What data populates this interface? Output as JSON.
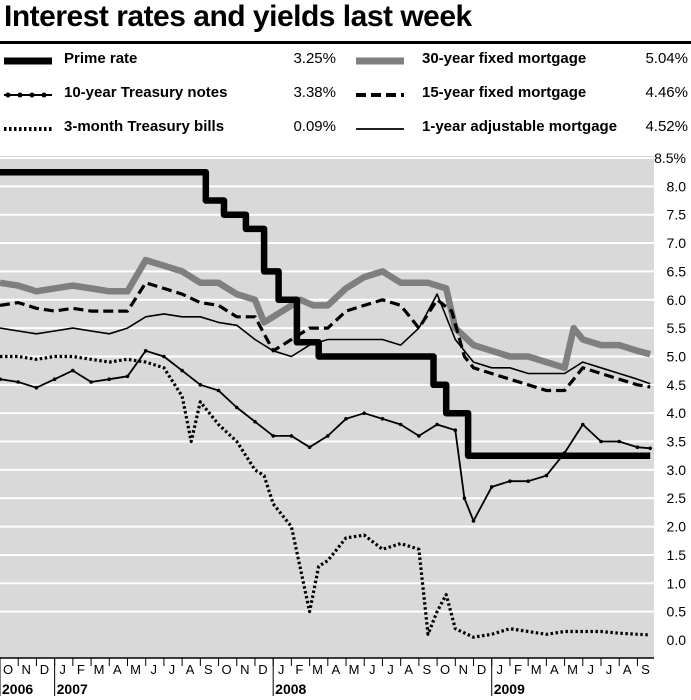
{
  "title": "Interest rates and yields last week",
  "legend": [
    {
      "key": "prime",
      "label": "Prime rate",
      "value": "3.25%"
    },
    {
      "key": "t10",
      "label": "10-year Treasury notes",
      "value": "3.38%"
    },
    {
      "key": "t3m",
      "label": "3-month Treasury bills",
      "value": "0.09%"
    },
    {
      "key": "m30",
      "label": "30-year fixed mortgage",
      "value": "5.04%"
    },
    {
      "key": "m15",
      "label": "15-year fixed mortgage",
      "value": "4.46%"
    },
    {
      "key": "arm1",
      "label": "1-year adjustable mortgage",
      "value": "4.52%"
    }
  ],
  "chart_data": {
    "type": "line",
    "title": "Interest rates and yields last week",
    "xlabel": "",
    "ylabel": "",
    "ylim": [
      0,
      8.5
    ],
    "yticks": [
      {
        "v": 8.5,
        "label": "8.5%"
      },
      {
        "v": 8.0,
        "label": "8.0"
      },
      {
        "v": 7.5,
        "label": "7.5"
      },
      {
        "v": 7.0,
        "label": "7.0"
      },
      {
        "v": 6.5,
        "label": "6.5"
      },
      {
        "v": 6.0,
        "label": "6.0"
      },
      {
        "v": 5.5,
        "label": "5.5"
      },
      {
        "v": 5.0,
        "label": "5.0"
      },
      {
        "v": 4.5,
        "label": "4.5"
      },
      {
        "v": 4.0,
        "label": "4.0"
      },
      {
        "v": 3.5,
        "label": "3.5"
      },
      {
        "v": 3.0,
        "label": "3.0"
      },
      {
        "v": 2.5,
        "label": "2.5"
      },
      {
        "v": 2.0,
        "label": "2.0"
      },
      {
        "v": 1.5,
        "label": "1.5"
      },
      {
        "v": 1.0,
        "label": "1.0"
      },
      {
        "v": 0.5,
        "label": "0.5"
      },
      {
        "v": 0.0,
        "label": "0.0"
      }
    ],
    "months": [
      "O",
      "N",
      "D",
      "J",
      "F",
      "M",
      "A",
      "M",
      "J",
      "J",
      "A",
      "S",
      "O",
      "N",
      "D",
      "J",
      "F",
      "M",
      "A",
      "M",
      "J",
      "J",
      "A",
      "S",
      "O",
      "N",
      "D",
      "J",
      "F",
      "M",
      "A",
      "M",
      "J",
      "J",
      "A",
      "S"
    ],
    "years": [
      {
        "label": "2006",
        "month_index": 0
      },
      {
        "label": "2007",
        "month_index": 3
      },
      {
        "label": "2008",
        "month_index": 15
      },
      {
        "label": "2009",
        "month_index": 27
      }
    ],
    "x_unit": "months since Oct 2006",
    "grid": true,
    "series": [
      {
        "key": "prime",
        "name": "Prime rate",
        "color": "#000000",
        "points": [
          [
            0,
            8.25
          ],
          [
            11.3,
            8.25
          ],
          [
            11.3,
            7.75
          ],
          [
            12.3,
            7.75
          ],
          [
            12.3,
            7.5
          ],
          [
            13.5,
            7.5
          ],
          [
            13.5,
            7.25
          ],
          [
            14.5,
            7.25
          ],
          [
            14.5,
            6.5
          ],
          [
            15.3,
            6.5
          ],
          [
            15.3,
            6.0
          ],
          [
            16.3,
            6.0
          ],
          [
            16.3,
            5.25
          ],
          [
            17.5,
            5.25
          ],
          [
            17.5,
            5.0
          ],
          [
            23.8,
            5.0
          ],
          [
            23.8,
            4.5
          ],
          [
            24.5,
            4.5
          ],
          [
            24.5,
            4.0
          ],
          [
            25.7,
            4.0
          ],
          [
            25.7,
            3.25
          ],
          [
            35.7,
            3.25
          ]
        ]
      },
      {
        "key": "m30",
        "name": "30-year fixed mortgage",
        "color": "#7f7f7f",
        "points": [
          [
            0,
            6.3
          ],
          [
            1,
            6.25
          ],
          [
            2,
            6.15
          ],
          [
            3,
            6.2
          ],
          [
            4,
            6.25
          ],
          [
            5,
            6.2
          ],
          [
            6,
            6.15
          ],
          [
            7,
            6.15
          ],
          [
            8,
            6.7
          ],
          [
            9,
            6.6
          ],
          [
            10,
            6.5
          ],
          [
            11,
            6.3
          ],
          [
            12,
            6.3
          ],
          [
            13,
            6.1
          ],
          [
            14,
            6.0
          ],
          [
            14.5,
            5.6
          ],
          [
            15.5,
            5.8
          ],
          [
            16.5,
            6.0
          ],
          [
            17.2,
            5.9
          ],
          [
            18,
            5.9
          ],
          [
            19,
            6.2
          ],
          [
            20,
            6.4
          ],
          [
            21,
            6.5
          ],
          [
            22,
            6.3
          ],
          [
            23.5,
            6.3
          ],
          [
            24.5,
            6.2
          ],
          [
            25,
            5.5
          ],
          [
            26,
            5.2
          ],
          [
            27,
            5.1
          ],
          [
            28,
            5.0
          ],
          [
            29,
            5.0
          ],
          [
            30,
            4.9
          ],
          [
            31,
            4.8
          ],
          [
            31.5,
            5.5
          ],
          [
            32,
            5.3
          ],
          [
            33,
            5.2
          ],
          [
            34,
            5.2
          ],
          [
            35,
            5.1
          ],
          [
            35.7,
            5.04
          ]
        ]
      },
      {
        "key": "m15",
        "name": "15-year fixed mortgage",
        "color": "#000000",
        "points": [
          [
            0,
            5.9
          ],
          [
            1,
            5.95
          ],
          [
            2,
            5.85
          ],
          [
            3,
            5.8
          ],
          [
            4,
            5.85
          ],
          [
            5,
            5.8
          ],
          [
            6,
            5.8
          ],
          [
            7,
            5.8
          ],
          [
            8,
            6.3
          ],
          [
            9,
            6.2
          ],
          [
            10,
            6.1
          ],
          [
            11,
            5.95
          ],
          [
            12,
            5.9
          ],
          [
            13,
            5.7
          ],
          [
            14,
            5.7
          ],
          [
            15,
            5.1
          ],
          [
            16,
            5.3
          ],
          [
            17,
            5.5
          ],
          [
            18,
            5.5
          ],
          [
            19,
            5.8
          ],
          [
            20,
            5.9
          ],
          [
            21,
            6.0
          ],
          [
            22,
            5.9
          ],
          [
            23,
            5.5
          ],
          [
            24,
            6.0
          ],
          [
            24.8,
            5.8
          ],
          [
            25.5,
            5.0
          ],
          [
            26,
            4.8
          ],
          [
            27,
            4.7
          ],
          [
            28,
            4.6
          ],
          [
            29,
            4.5
          ],
          [
            30,
            4.4
          ],
          [
            31,
            4.4
          ],
          [
            32,
            4.8
          ],
          [
            33,
            4.7
          ],
          [
            34,
            4.6
          ],
          [
            35,
            4.5
          ],
          [
            35.7,
            4.46
          ]
        ]
      },
      {
        "key": "arm1",
        "name": "1-year adjustable mortgage",
        "color": "#000000",
        "points": [
          [
            0,
            5.5
          ],
          [
            1,
            5.45
          ],
          [
            2,
            5.4
          ],
          [
            3,
            5.45
          ],
          [
            4,
            5.5
          ],
          [
            5,
            5.45
          ],
          [
            6,
            5.4
          ],
          [
            7,
            5.5
          ],
          [
            8,
            5.7
          ],
          [
            9,
            5.75
          ],
          [
            10,
            5.7
          ],
          [
            11,
            5.7
          ],
          [
            12,
            5.6
          ],
          [
            13,
            5.55
          ],
          [
            14,
            5.3
          ],
          [
            15,
            5.1
          ],
          [
            16,
            5.0
          ],
          [
            17,
            5.2
          ],
          [
            18,
            5.3
          ],
          [
            19,
            5.3
          ],
          [
            20,
            5.3
          ],
          [
            21,
            5.3
          ],
          [
            22,
            5.2
          ],
          [
            23,
            5.5
          ],
          [
            24,
            6.1
          ],
          [
            25,
            5.3
          ],
          [
            26,
            4.9
          ],
          [
            27,
            4.8
          ],
          [
            28,
            4.8
          ],
          [
            29,
            4.7
          ],
          [
            30,
            4.7
          ],
          [
            31,
            4.7
          ],
          [
            32,
            4.9
          ],
          [
            33,
            4.8
          ],
          [
            34,
            4.7
          ],
          [
            35,
            4.6
          ],
          [
            35.7,
            4.52
          ]
        ]
      },
      {
        "key": "t10",
        "name": "10-year Treasury notes",
        "color": "#000000",
        "points": [
          [
            0,
            4.6
          ],
          [
            1,
            4.55
          ],
          [
            2,
            4.45
          ],
          [
            3,
            4.6
          ],
          [
            4,
            4.75
          ],
          [
            5,
            4.55
          ],
          [
            6,
            4.6
          ],
          [
            7,
            4.65
          ],
          [
            8,
            5.1
          ],
          [
            9,
            5.0
          ],
          [
            10,
            4.75
          ],
          [
            11,
            4.5
          ],
          [
            12,
            4.4
          ],
          [
            13,
            4.1
          ],
          [
            14,
            3.85
          ],
          [
            15,
            3.6
          ],
          [
            16,
            3.6
          ],
          [
            17,
            3.4
          ],
          [
            18,
            3.6
          ],
          [
            19,
            3.9
          ],
          [
            20,
            4.0
          ],
          [
            21,
            3.9
          ],
          [
            22,
            3.8
          ],
          [
            23,
            3.6
          ],
          [
            24,
            3.8
          ],
          [
            25,
            3.7
          ],
          [
            25.5,
            2.5
          ],
          [
            26,
            2.1
          ],
          [
            27,
            2.7
          ],
          [
            28,
            2.8
          ],
          [
            29,
            2.8
          ],
          [
            30,
            2.9
          ],
          [
            31,
            3.3
          ],
          [
            32,
            3.8
          ],
          [
            33,
            3.5
          ],
          [
            34,
            3.5
          ],
          [
            35,
            3.4
          ],
          [
            35.7,
            3.38
          ]
        ]
      },
      {
        "key": "t3m",
        "name": "3-month Treasury bills",
        "color": "#000000",
        "points": [
          [
            0,
            5.0
          ],
          [
            1,
            5.0
          ],
          [
            2,
            4.95
          ],
          [
            3,
            5.0
          ],
          [
            4,
            5.0
          ],
          [
            5,
            4.95
          ],
          [
            6,
            4.9
          ],
          [
            7,
            4.95
          ],
          [
            8,
            4.9
          ],
          [
            9,
            4.8
          ],
          [
            10,
            4.3
          ],
          [
            10.5,
            3.5
          ],
          [
            11,
            4.2
          ],
          [
            12,
            3.8
          ],
          [
            13,
            3.5
          ],
          [
            14,
            3.0
          ],
          [
            14.5,
            2.9
          ],
          [
            15,
            2.4
          ],
          [
            16,
            2.0
          ],
          [
            17,
            0.5
          ],
          [
            17.5,
            1.3
          ],
          [
            18,
            1.4
          ],
          [
            19,
            1.8
          ],
          [
            20,
            1.85
          ],
          [
            21,
            1.6
          ],
          [
            22,
            1.7
          ],
          [
            23,
            1.6
          ],
          [
            23.5,
            0.1
          ],
          [
            24,
            0.5
          ],
          [
            24.5,
            0.8
          ],
          [
            25,
            0.2
          ],
          [
            26,
            0.05
          ],
          [
            27,
            0.1
          ],
          [
            28,
            0.2
          ],
          [
            29,
            0.15
          ],
          [
            30,
            0.1
          ],
          [
            31,
            0.15
          ],
          [
            32,
            0.15
          ],
          [
            33,
            0.15
          ],
          [
            34,
            0.12
          ],
          [
            35,
            0.1
          ],
          [
            35.7,
            0.09
          ]
        ]
      }
    ]
  }
}
